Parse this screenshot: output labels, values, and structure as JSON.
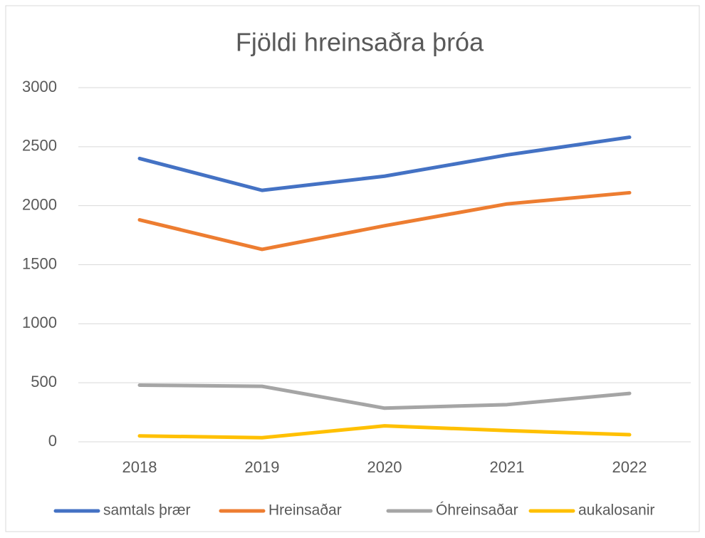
{
  "chart_data": {
    "type": "line",
    "title": "Fjöldi hreinsaðra þróa",
    "categories": [
      "2018",
      "2019",
      "2020",
      "2021",
      "2022"
    ],
    "series": [
      {
        "name": "samtals þrær",
        "color": "#4472c4",
        "values": [
          2400,
          2130,
          2250,
          2430,
          2580
        ]
      },
      {
        "name": "Hreinsaðar",
        "color": "#ed7d31",
        "values": [
          1880,
          1630,
          1830,
          2015,
          2110
        ]
      },
      {
        "name": "Óhreinsaðar",
        "color": "#a5a5a5",
        "values": [
          480,
          470,
          285,
          315,
          410
        ]
      },
      {
        "name": "aukalosanir",
        "color": "#ffc000",
        "values": [
          50,
          35,
          135,
          95,
          60
        ]
      }
    ],
    "ylim": [
      0,
      3000
    ],
    "yticks": [
      0,
      500,
      1000,
      1500,
      2000,
      2500,
      3000
    ],
    "grid": true,
    "legend": "bottom"
  }
}
